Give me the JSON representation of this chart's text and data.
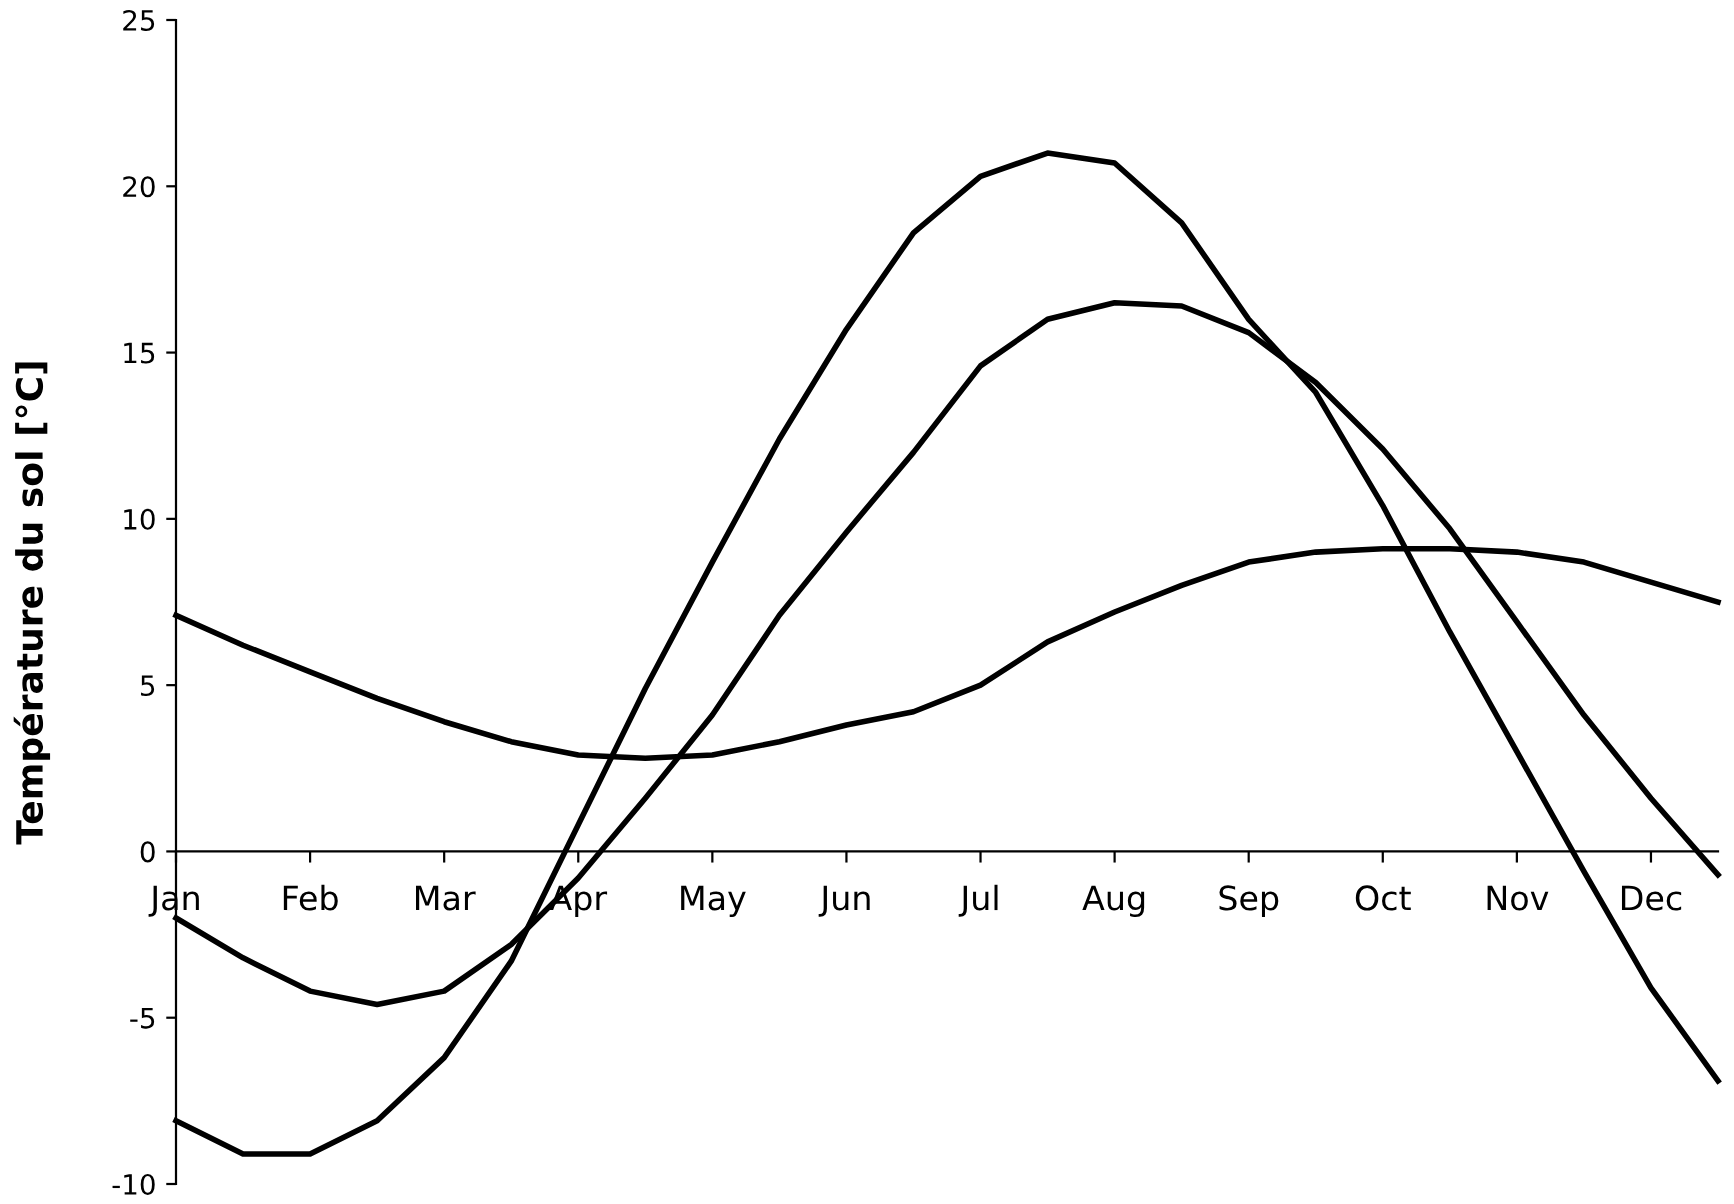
{
  "chart_data": {
    "type": "line",
    "ylabel": "Température du sol [°C]",
    "categories": [
      "Jan",
      null,
      "Feb",
      null,
      "Mar",
      null,
      "Apr",
      null,
      "May",
      null,
      "Jun",
      null,
      "Jul",
      null,
      "Aug",
      null,
      "Sep",
      null,
      "Oct",
      null,
      "Nov",
      null,
      "Dec",
      null
    ],
    "series": [
      {
        "color": "#000000",
        "values": [
          -8.1,
          -9.1,
          -9.1,
          -8.1,
          -6.2,
          -3.3,
          0.8,
          4.9,
          8.7,
          12.4,
          15.7,
          18.6,
          20.3,
          21.0,
          20.7,
          18.9,
          16.0,
          13.8,
          10.4,
          6.6,
          3.0,
          -0.6,
          -4.1,
          -6.9
        ]
      },
      {
        "color": "#000000",
        "values": [
          -2.0,
          -3.2,
          -4.2,
          -4.6,
          -4.2,
          -2.8,
          -0.8,
          1.6,
          4.1,
          7.1,
          9.6,
          12.0,
          14.6,
          16.0,
          16.5,
          16.4,
          15.6,
          14.1,
          12.1,
          9.7,
          6.9,
          4.1,
          1.6,
          -0.7
        ]
      },
      {
        "color": "#000000",
        "values": [
          7.1,
          6.2,
          5.4,
          4.6,
          3.9,
          3.3,
          2.9,
          2.8,
          2.9,
          3.3,
          3.8,
          4.2,
          5.0,
          6.3,
          7.2,
          8.0,
          8.7,
          9.0,
          9.1,
          9.1,
          9.0,
          8.7,
          8.1,
          7.5
        ]
      }
    ],
    "ylim": [
      -10,
      25
    ],
    "yticks": [
      -10,
      -5,
      0,
      5,
      10,
      15,
      20,
      25
    ],
    "marker": "none",
    "line_style": "solid"
  }
}
